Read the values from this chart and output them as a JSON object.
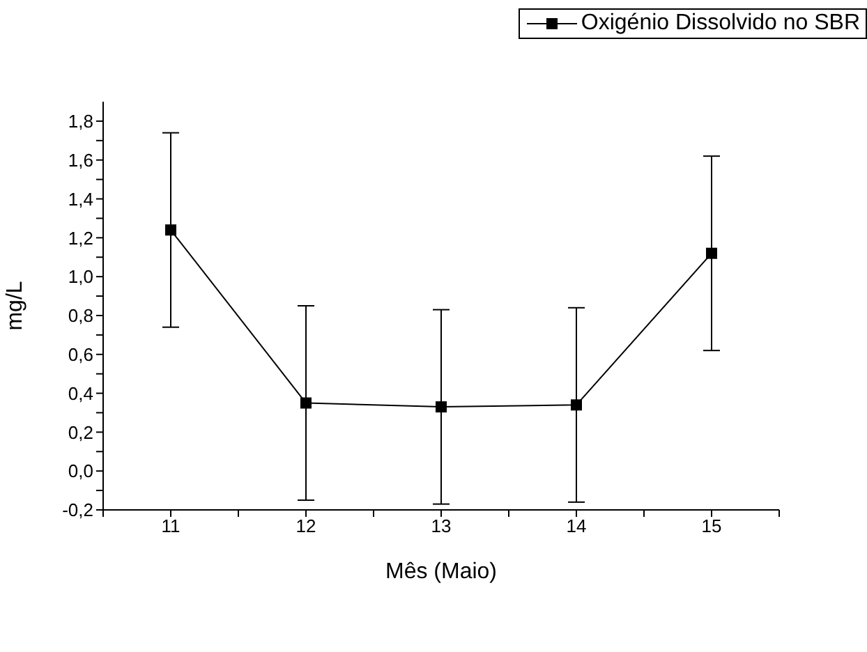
{
  "chart_data": {
    "type": "line",
    "xlabel": "Mês (Maio)",
    "ylabel": "mg/L",
    "x": [
      11,
      12,
      13,
      14,
      15
    ],
    "series": [
      {
        "name": "Oxigénio Dissolvido no SBR",
        "color": "#000000",
        "values": [
          1.24,
          0.35,
          0.33,
          0.34,
          1.12
        ],
        "errors": [
          0.5,
          0.5,
          0.5,
          0.5,
          0.5
        ]
      }
    ],
    "xlim": [
      10.5,
      15.5
    ],
    "xticks": [
      {
        "value": 10.5,
        "label": null
      },
      11,
      {
        "value": 11.5,
        "label": null
      },
      12,
      {
        "value": 12.5,
        "label": null
      },
      13,
      {
        "value": 13.5,
        "label": null
      },
      14,
      {
        "value": 14.5,
        "label": null
      },
      15,
      {
        "value": 15.5,
        "label": null
      }
    ],
    "ylim": [
      -0.2,
      1.9
    ],
    "yticks": [
      {
        "value": -0.2,
        "label": "-0,2"
      },
      {
        "value": -0.1,
        "label": null
      },
      {
        "value": 0,
        "label": "0,0"
      },
      {
        "value": 0.1,
        "label": null
      },
      {
        "value": 0.2,
        "label": "0,2"
      },
      {
        "value": 0.3,
        "label": null
      },
      {
        "value": 0.4,
        "label": "0,4"
      },
      {
        "value": 0.5,
        "label": null
      },
      {
        "value": 0.6,
        "label": "0,6"
      },
      {
        "value": 0.7,
        "label": null
      },
      {
        "value": 0.8,
        "label": "0,8"
      },
      {
        "value": 0.9,
        "label": null
      },
      {
        "value": 1.0,
        "label": "1,0"
      },
      {
        "value": 1.1,
        "label": null
      },
      {
        "value": 1.2,
        "label": "1,2"
      },
      {
        "value": 1.3,
        "label": null
      },
      {
        "value": 1.4,
        "label": "1,4"
      },
      {
        "value": 1.5,
        "label": null
      },
      {
        "value": 1.6,
        "label": "1,6"
      },
      {
        "value": 1.7,
        "label": null
      },
      {
        "value": 1.8,
        "label": "1,8"
      }
    ],
    "marker": "square",
    "line_style": "solid",
    "grid": false,
    "legend": "top right"
  }
}
